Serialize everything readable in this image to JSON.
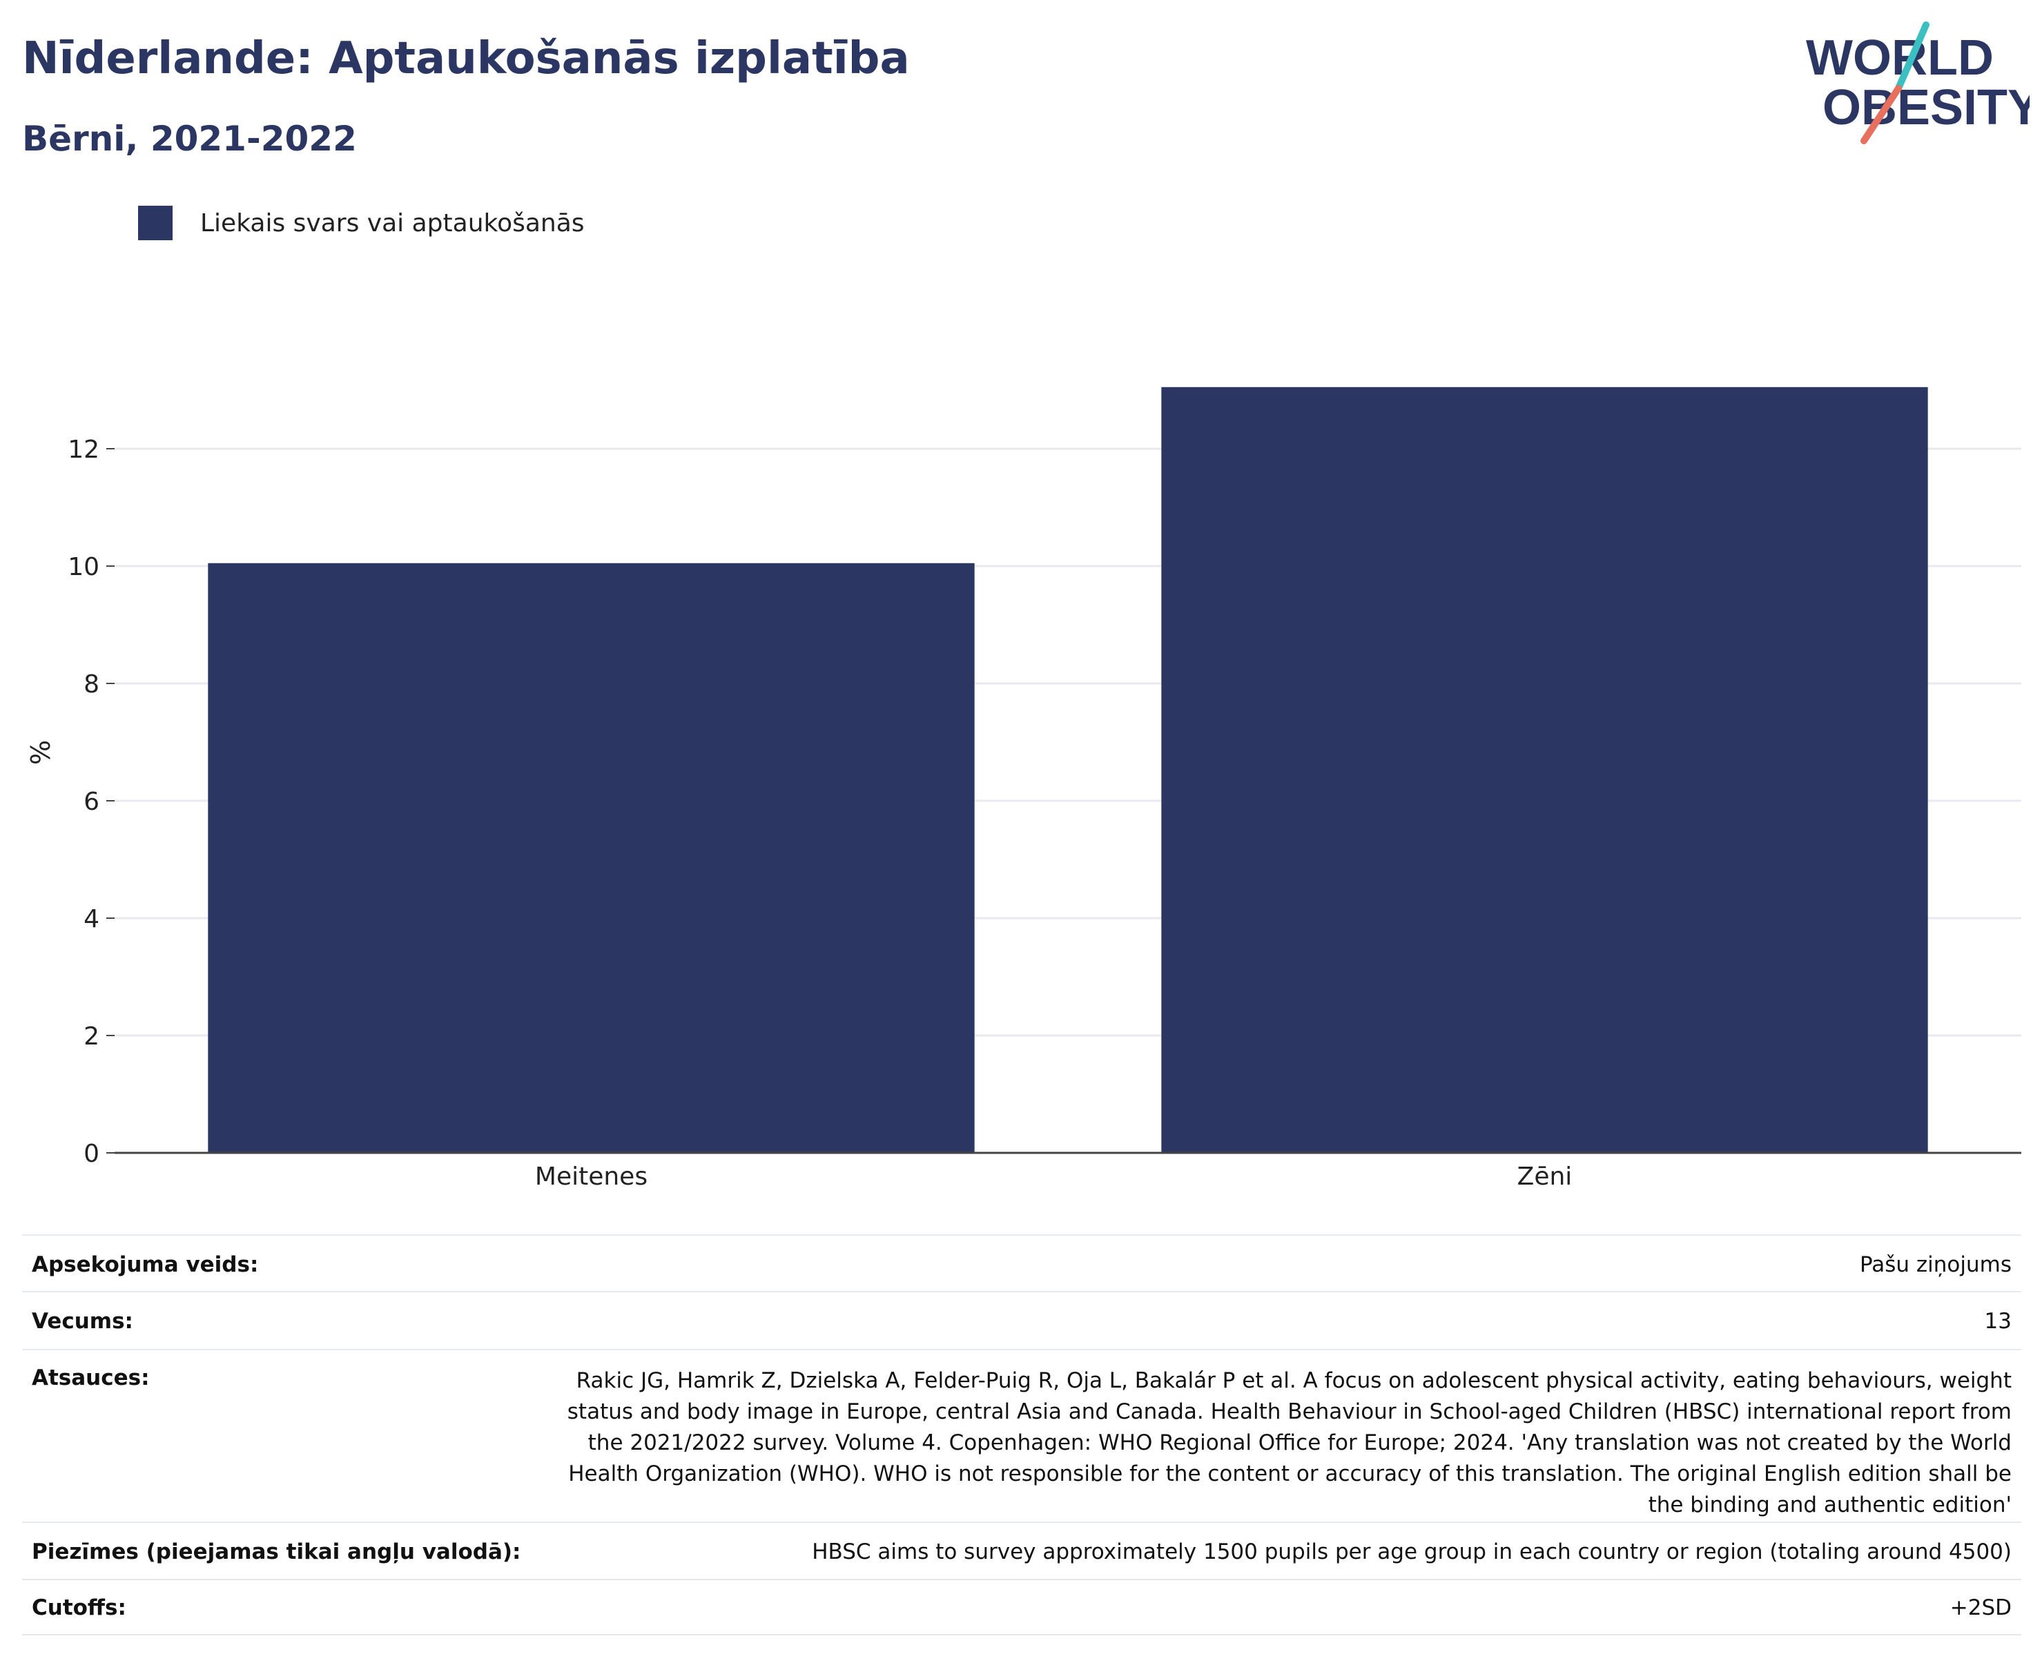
{
  "header": {
    "title": "Nīderlande: Aptaukošanās izplatība",
    "subtitle": "Bērni, 2021-2022"
  },
  "logo": {
    "line1": "WORLD",
    "line2": "OBESITY",
    "accent_teal": "#3bbfc0",
    "accent_coral": "#e8705f"
  },
  "colors": {
    "bar": "#2b3663",
    "title": "#2b3663",
    "grid": "#e9e9ef",
    "axis": "#444444"
  },
  "chart_data": {
    "type": "bar",
    "categories": [
      "Meitenes",
      "Zēni"
    ],
    "series": [
      {
        "name": "Liekais svars vai aptaukošanās",
        "values": [
          10.05,
          13.05
        ]
      }
    ],
    "ylabel": "%",
    "xlabel": "",
    "ylim": [
      0,
      14
    ],
    "yticks": [
      0,
      2,
      4,
      6,
      8,
      10,
      12
    ],
    "grid": true,
    "legend_position": "top-left"
  },
  "info": [
    {
      "label": "Apsekojuma veids:",
      "value": "Pašu ziņojums"
    },
    {
      "label": "Vecums:",
      "value": "13"
    },
    {
      "label": "Atsauces:",
      "value": "Rakic JG, Hamrik Z, Dzielska A, Felder-Puig R, Oja L, Bakalár P et al. A focus on adolescent physical activity, eating behaviours, weight status and body image in Europe, central Asia and Canada. Health Behaviour in School-aged Children (HBSC) international report from the 2021/2022 survey. Volume 4. Copenhagen: WHO Regional Office for Europe; 2024. 'Any translation was not created by the World Health Organization (WHO). WHO is not responsible for the content or accuracy of this translation. The original English edition shall be the binding and authentic edition'"
    },
    {
      "label": "Piezīmes (pieejamas tikai angļu valodā):",
      "value": "HBSC aims to survey approximately 1500 pupils per age group in each country or region (totaling around 4500)"
    },
    {
      "label": "Cutoffs:",
      "value": "+2SD"
    }
  ]
}
